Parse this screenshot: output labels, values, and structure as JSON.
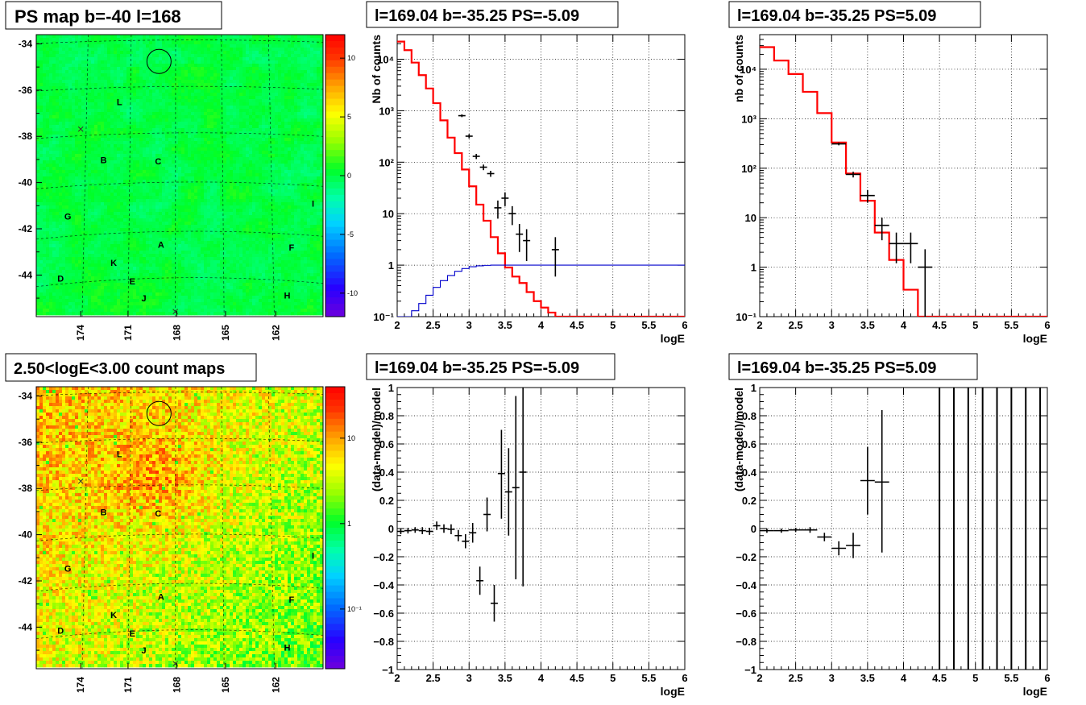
{
  "panels": {
    "map_ps": {
      "title": "PS map b=-40 l=168"
    },
    "map_counts": {
      "title": "2.50<logE<3.00 count maps"
    },
    "spec1": {
      "title": "l=169.04 b=-35.25 PS=-5.09"
    },
    "spec2": {
      "title": "l=169.04 b=-35.25 PS=5.09"
    },
    "res1": {
      "title": "l=169.04 b=-35.25 PS=-5.09"
    },
    "res2": {
      "title": "l=169.04 b=-35.25 PS=5.09"
    }
  },
  "colors": {
    "data": "#000000",
    "model": "#ff0000",
    "exposure": "#0000cc",
    "grid": "#000000"
  },
  "chart_data": [
    {
      "id": "map_ps",
      "type": "heatmap",
      "title": "PS map b=-40 l=168",
      "ylim": [
        -45.8,
        -33.6
      ],
      "xticks": [
        "174",
        "171",
        "168",
        "165",
        "162"
      ],
      "yticks": [
        "-34",
        "-36",
        "-38",
        "-40",
        "-42",
        "-44"
      ],
      "colorbar": {
        "min": -12,
        "max": 12,
        "ticks": [
          "10",
          "5",
          "0",
          "-5",
          "-10"
        ],
        "tick_values": [
          10,
          5,
          0,
          -5,
          -10
        ],
        "scale": "linear"
      },
      "labels": [
        "L",
        "B",
        "C",
        "G",
        "A",
        "K",
        "D",
        "E",
        "J",
        "F",
        "H",
        "I"
      ]
    },
    {
      "id": "map_counts",
      "type": "heatmap",
      "title": "2.50<logE<3.00 count maps",
      "ylim": [
        -45.8,
        -33.6
      ],
      "xticks": [
        "174",
        "171",
        "168",
        "165",
        "162"
      ],
      "yticks": [
        "-34",
        "-36",
        "-38",
        "-40",
        "-42",
        "-44"
      ],
      "colorbar": {
        "min": 0.02,
        "max": 40,
        "ticks": [
          "10",
          "1",
          "10⁻¹"
        ],
        "tick_values": [
          10,
          1,
          0.1
        ],
        "scale": "log"
      },
      "labels": [
        "L",
        "B",
        "C",
        "G",
        "A",
        "K",
        "D",
        "E",
        "J",
        "F",
        "H",
        "I"
      ]
    },
    {
      "id": "spec1",
      "type": "line",
      "title": "l=169.04 b=-35.25 PS=-5.09",
      "xlabel": "logE",
      "ylabel": "Nb of counts",
      "xlim": [
        2,
        6
      ],
      "ylim": [
        0.1,
        30000
      ],
      "yscale": "log",
      "xticks": [
        "2",
        "2.5",
        "3",
        "3.5",
        "4",
        "4.5",
        "5",
        "5.5",
        "6"
      ],
      "yticks": [
        "10⁻¹",
        "1",
        "10",
        "10²",
        "10³",
        "10⁴"
      ],
      "series": [
        {
          "name": "",
          "role": "model",
          "kind": "step",
          "edges": [
            2.0,
            2.1,
            2.2,
            2.3,
            2.4,
            2.5,
            2.6,
            2.7,
            2.8,
            2.9,
            3.0,
            3.1,
            3.2,
            3.3,
            3.4,
            3.5,
            3.6,
            3.7,
            3.8,
            3.9,
            4.0,
            4.1,
            4.2,
            4.3,
            6.0
          ],
          "values": [
            22000,
            15000,
            8600,
            4900,
            2700,
            1400,
            650,
            300,
            150,
            72,
            34,
            15,
            7.3,
            3.5,
            1.7,
            0.9,
            0.6,
            0.45,
            0.3,
            0.2,
            0.15,
            0.12,
            0.1,
            0.1
          ]
        },
        {
          "name": "",
          "role": "exposure",
          "kind": "step",
          "edges": [
            2.0,
            2.1,
            2.2,
            2.3,
            2.4,
            2.5,
            2.6,
            2.7,
            2.8,
            2.9,
            3.0,
            3.1,
            3.2,
            3.3,
            6.0
          ],
          "values": [
            0.09,
            0.1,
            0.13,
            0.18,
            0.26,
            0.37,
            0.5,
            0.63,
            0.76,
            0.86,
            0.93,
            0.97,
            0.99,
            1.0
          ]
        },
        {
          "name": "",
          "role": "data",
          "kind": "errorbar",
          "x": [
            2.9,
            3.0,
            3.1,
            3.2,
            3.3,
            3.4,
            3.5,
            3.6,
            3.7,
            3.8,
            4.2
          ],
          "xerr": 0.05,
          "y": [
            800,
            320,
            130,
            80,
            60,
            13,
            20,
            10,
            4,
            3,
            2
          ],
          "ylow": [
            750,
            290,
            115,
            70,
            52,
            8,
            14,
            6,
            1.8,
            1.2,
            0.6
          ],
          "yhigh": [
            850,
            350,
            145,
            90,
            68,
            18,
            26,
            14,
            6.3,
            5,
            3.5
          ]
        }
      ]
    },
    {
      "id": "spec2",
      "type": "line",
      "title": "l=169.04 b=-35.25 PS=5.09",
      "xlabel": "logE",
      "ylabel": "nb of counts",
      "xlim": [
        2,
        6
      ],
      "ylim": [
        0.1,
        50000
      ],
      "yscale": "log",
      "xticks": [
        "2",
        "2.5",
        "3",
        "3.5",
        "4",
        "4.5",
        "5",
        "5.5",
        "6"
      ],
      "yticks": [
        "10⁻¹",
        "1",
        "10",
        "10²",
        "10³",
        "10⁴"
      ],
      "series": [
        {
          "name": "",
          "role": "model",
          "kind": "step",
          "edges": [
            2.0,
            2.2,
            2.4,
            2.6,
            2.8,
            3.0,
            3.2,
            3.4,
            3.6,
            3.8,
            4.0,
            4.2,
            4.4,
            6.0
          ],
          "values": [
            28000,
            15000,
            8000,
            3500,
            1300,
            330,
            78,
            22,
            5,
            1.4,
            0.35,
            0.1,
            0.1
          ]
        },
        {
          "name": "",
          "role": "data",
          "kind": "errorbar",
          "x": [
            3.1,
            3.3,
            3.5,
            3.7,
            3.9,
            4.1,
            4.3
          ],
          "xerr": 0.1,
          "y": [
            310,
            75,
            28,
            7,
            3,
            3,
            1
          ],
          "ylow": [
            290,
            65,
            20,
            3.5,
            1.2,
            1.2,
            0.1
          ],
          "yhigh": [
            330,
            85,
            36,
            10,
            5,
            5,
            2.3
          ]
        }
      ]
    },
    {
      "id": "res1",
      "type": "scatter",
      "title": "l=169.04 b=-35.25 PS=-5.09",
      "xlabel": "logE",
      "ylabel": "(data-model)/model",
      "xlim": [
        2,
        6
      ],
      "ylim": [
        -1,
        1
      ],
      "xticks": [
        "2",
        "2.5",
        "3",
        "3.5",
        "4",
        "4.5",
        "5",
        "5.5",
        "6"
      ],
      "yticks": [
        "−1",
        "−0.8",
        "−0.6",
        "−0.4",
        "−0.2",
        "0",
        "0.2",
        "0.4",
        "0.6",
        "0.8",
        "1"
      ],
      "series": [
        {
          "name": "",
          "role": "data",
          "kind": "errorbar",
          "x": [
            2.05,
            2.15,
            2.25,
            2.35,
            2.45,
            2.55,
            2.65,
            2.75,
            2.85,
            2.95,
            3.05,
            3.15,
            3.25,
            3.35,
            3.45,
            3.55,
            3.65,
            3.75
          ],
          "xerr": 0.05,
          "y": [
            -0.02,
            -0.015,
            -0.01,
            -0.015,
            -0.02,
            0.02,
            0.0,
            -0.005,
            -0.05,
            -0.09,
            -0.03,
            -0.37,
            0.1,
            -0.53,
            0.39,
            0.26,
            0.29,
            0.4
          ],
          "ylow": [
            -0.04,
            -0.035,
            -0.03,
            -0.04,
            -0.045,
            -0.01,
            -0.03,
            -0.04,
            -0.09,
            -0.14,
            -0.1,
            -0.47,
            -0.02,
            -0.66,
            0.07,
            -0.05,
            -0.36,
            -0.41
          ],
          "yhigh": [
            0.0,
            0.005,
            0.01,
            0.01,
            0.005,
            0.05,
            0.03,
            0.03,
            -0.01,
            -0.04,
            0.04,
            -0.27,
            0.22,
            -0.4,
            0.7,
            0.57,
            0.94,
            1.0
          ]
        }
      ]
    },
    {
      "id": "res2",
      "type": "scatter",
      "title": "l=169.04 b=-35.25 PS=5.09",
      "xlabel": "logE",
      "ylabel": "(data-model)/model",
      "xlim": [
        2,
        6
      ],
      "ylim": [
        -1,
        1
      ],
      "xticks": [
        "2",
        "2.5",
        "3",
        "3.5",
        "4",
        "4.5",
        "5",
        "5.5",
        "6"
      ],
      "yticks": [
        "−1",
        "−0.8",
        "−0.6",
        "−0.4",
        "−0.2",
        "0",
        "0.2",
        "0.4",
        "0.6",
        "0.8",
        "1"
      ],
      "series": [
        {
          "name": "",
          "role": "data",
          "kind": "errorbar",
          "x": [
            2.1,
            2.3,
            2.5,
            2.7,
            2.9,
            3.1,
            3.3,
            3.5,
            3.7
          ],
          "xerr": 0.1,
          "y": [
            -0.015,
            -0.015,
            -0.01,
            -0.01,
            -0.06,
            -0.14,
            -0.12,
            0.34,
            0.33
          ],
          "ylow": [
            -0.03,
            -0.03,
            -0.025,
            -0.03,
            -0.09,
            -0.19,
            -0.21,
            0.1,
            -0.17
          ],
          "yhigh": [
            0.0,
            0.0,
            0.005,
            0.01,
            -0.03,
            -0.09,
            -0.03,
            0.58,
            0.84
          ]
        },
        {
          "name": "",
          "role": "data",
          "kind": "vline",
          "x": [
            4.5,
            4.7,
            4.9,
            5.1,
            5.3,
            5.5,
            5.7,
            5.9
          ],
          "ylow": -1,
          "yhigh": 1
        }
      ]
    }
  ]
}
